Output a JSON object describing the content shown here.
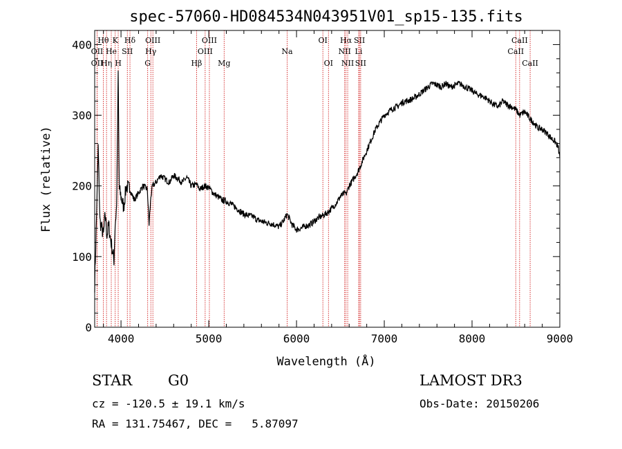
{
  "chart_data": {
    "type": "line",
    "title": "spec-57060-HD084534N043951V01_sp15-135.fits",
    "xlabel": "Wavelength (Å)",
    "ylabel": "Flux (relative)",
    "xlim": [
      3700,
      9000
    ],
    "ylim": [
      0,
      420
    ],
    "xticks": [
      4000,
      5000,
      6000,
      7000,
      8000,
      9000
    ],
    "yticks": [
      0,
      100,
      200,
      300,
      400
    ],
    "grid": false,
    "series": [
      {
        "name": "flux",
        "x": [
          3700,
          3720,
          3740,
          3760,
          3780,
          3800,
          3820,
          3840,
          3860,
          3880,
          3900,
          3920,
          3933,
          3950,
          3968,
          3980,
          4000,
          4030,
          4060,
          4102,
          4150,
          4200,
          4250,
          4300,
          4320,
          4340,
          4360,
          4400,
          4450,
          4500,
          4550,
          4600,
          4650,
          4700,
          4750,
          4800,
          4861,
          4900,
          4950,
          5000,
          5050,
          5100,
          5150,
          5200,
          5250,
          5300,
          5350,
          5400,
          5450,
          5500,
          5550,
          5600,
          5650,
          5700,
          5750,
          5800,
          5850,
          5893,
          5950,
          6000,
          6050,
          6100,
          6150,
          6200,
          6250,
          6300,
          6350,
          6400,
          6450,
          6500,
          6550,
          6563,
          6600,
          6650,
          6700,
          6750,
          6800,
          6850,
          6900,
          6950,
          7000,
          7050,
          7100,
          7150,
          7200,
          7250,
          7300,
          7350,
          7400,
          7450,
          7500,
          7550,
          7600,
          7650,
          7700,
          7750,
          7800,
          7850,
          7900,
          7950,
          8000,
          8050,
          8100,
          8150,
          8200,
          8250,
          8300,
          8350,
          8400,
          8450,
          8500,
          8542,
          8600,
          8662,
          8700,
          8750,
          8800,
          8850,
          8900,
          8950,
          8980,
          9000
        ],
        "values": [
          60,
          150,
          255,
          150,
          140,
          130,
          160,
          130,
          145,
          125,
          110,
          95,
          145,
          170,
          360,
          195,
          185,
          170,
          200,
          195,
          180,
          190,
          200,
          195,
          145,
          185,
          200,
          205,
          215,
          210,
          205,
          215,
          210,
          205,
          212,
          200,
          202,
          195,
          200,
          198,
          190,
          185,
          180,
          178,
          175,
          170,
          165,
          160,
          158,
          157,
          152,
          150,
          148,
          147,
          145,
          142,
          150,
          160,
          145,
          138,
          140,
          143,
          145,
          150,
          155,
          158,
          162,
          168,
          175,
          185,
          190,
          188,
          200,
          210,
          220,
          235,
          250,
          265,
          280,
          290,
          300,
          305,
          310,
          312,
          318,
          320,
          322,
          325,
          330,
          335,
          340,
          345,
          343,
          340,
          345,
          340,
          342,
          345,
          342,
          338,
          335,
          330,
          328,
          325,
          320,
          315,
          312,
          320,
          315,
          312,
          308,
          300,
          305,
          295,
          290,
          282,
          280,
          275,
          268,
          262,
          255,
          240
        ]
      }
    ],
    "line_markers": [
      {
        "label": "OII",
        "wavelength": 3727,
        "tier": 2
      },
      {
        "label": "Hθ",
        "wavelength": 3798,
        "tier": 0
      },
      {
        "label": "OII",
        "wavelength": 3727,
        "tier": 1
      },
      {
        "label": "He",
        "wavelength": 3889,
        "tier": 1
      },
      {
        "label": "Hη",
        "wavelength": 3835,
        "tier": 2
      },
      {
        "label": "K",
        "wavelength": 3934,
        "tier": 0
      },
      {
        "label": "H",
        "wavelength": 3968,
        "tier": 2
      },
      {
        "label": "Hδ",
        "wavelength": 4102,
        "tier": 0
      },
      {
        "label": "SII",
        "wavelength": 4072,
        "tier": 1
      },
      {
        "label": "OIII",
        "wavelength": 4363,
        "tier": 0
      },
      {
        "label": "Hγ",
        "wavelength": 4340,
        "tier": 1
      },
      {
        "label": "G",
        "wavelength": 4304,
        "tier": 2
      },
      {
        "label": "Hβ",
        "wavelength": 4861,
        "tier": 2
      },
      {
        "label": "OIII",
        "wavelength": 5007,
        "tier": 0
      },
      {
        "label": "OIII",
        "wavelength": 4959,
        "tier": 1
      },
      {
        "label": "Mg",
        "wavelength": 5175,
        "tier": 2
      },
      {
        "label": "Na",
        "wavelength": 5893,
        "tier": 1
      },
      {
        "label": "OI",
        "wavelength": 6300,
        "tier": 0
      },
      {
        "label": "OI",
        "wavelength": 6364,
        "tier": 2
      },
      {
        "label": "Hα",
        "wavelength": 6563,
        "tier": 0
      },
      {
        "label": "NII",
        "wavelength": 6548,
        "tier": 1
      },
      {
        "label": "NII",
        "wavelength": 6583,
        "tier": 2
      },
      {
        "label": "SII",
        "wavelength": 6717,
        "tier": 0
      },
      {
        "label": "Li",
        "wavelength": 6708,
        "tier": 1
      },
      {
        "label": "SII",
        "wavelength": 6731,
        "tier": 2
      },
      {
        "label": "CaII",
        "wavelength": 8542,
        "tier": 0
      },
      {
        "label": "CaII",
        "wavelength": 8498,
        "tier": 1
      },
      {
        "label": "CaII",
        "wavelength": 8662,
        "tier": 2
      }
    ]
  },
  "info": {
    "object_class": "STAR",
    "subclass": "G0",
    "survey": "LAMOST DR3",
    "redshift_text": "cz = -120.5 ± 19.1 km/s",
    "obs_date_text": "Obs-Date: 20150206",
    "radec_text": "RA = 131.75467, DEC =   5.87097"
  },
  "colors": {
    "spectrum": "#000000",
    "marker_line": "#cc0000",
    "axes": "#000000"
  }
}
